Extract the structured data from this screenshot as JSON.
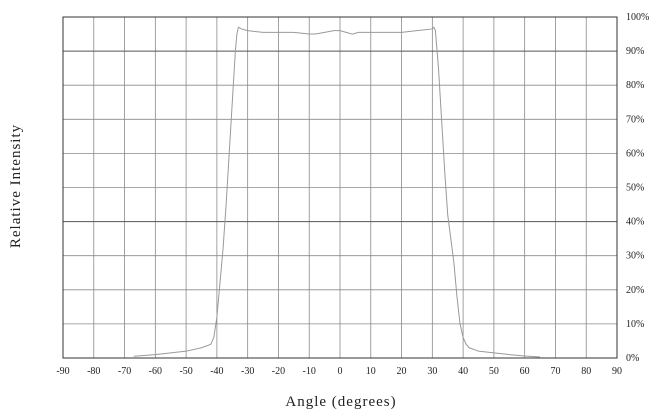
{
  "chart_data": {
    "type": "line",
    "title": "",
    "xlabel": "Angle (degrees)",
    "ylabel": "Relative Intensity",
    "xlim": [
      -90,
      90
    ],
    "ylim": [
      0,
      100
    ],
    "x_ticks": [
      -90,
      -80,
      -70,
      -60,
      -50,
      -40,
      -30,
      -20,
      -10,
      0,
      10,
      20,
      30,
      40,
      50,
      60,
      70,
      80,
      90
    ],
    "x_tick_labels": [
      "-90",
      "-80",
      "-70",
      "-60",
      "-50",
      "-40",
      "-30",
      "-20",
      "-10",
      "0",
      "10",
      "20",
      "30",
      "40",
      "50",
      "60",
      "70",
      "80",
      "90"
    ],
    "y_ticks": [
      0,
      10,
      20,
      30,
      40,
      50,
      60,
      70,
      80,
      90,
      100
    ],
    "y_tick_labels": [
      "0%",
      "10%",
      "20%",
      "30%",
      "40%",
      "50%",
      "60%",
      "70%",
      "80%",
      "90%",
      "100%"
    ],
    "y_axis_position": "right",
    "grid": true,
    "line_color": "#999999",
    "series": [
      {
        "x": [
          -67,
          -60,
          -55,
          -50,
          -45,
          -42,
          -41,
          -40,
          -39,
          -38,
          -37,
          -36,
          -35,
          -34,
          -33.5,
          -33,
          -32,
          -30,
          -25,
          -20,
          -15,
          -10,
          -8,
          -5,
          -2,
          0,
          2,
          4,
          6,
          8,
          10,
          15,
          20,
          25,
          30,
          30.5,
          31,
          32,
          33,
          34,
          35,
          36,
          37,
          38,
          39,
          40,
          41,
          42,
          45,
          50,
          55,
          60,
          65
        ],
        "y": [
          0.5,
          1,
          1.5,
          2,
          3,
          4,
          6,
          12,
          22,
          32,
          45,
          60,
          75,
          90,
          95,
          97,
          96.5,
          96,
          95.5,
          95.5,
          95.5,
          95,
          95,
          95.5,
          96,
          96,
          95.5,
          95,
          95.5,
          95.5,
          95.5,
          95.5,
          95.5,
          96,
          96.5,
          97,
          96,
          85,
          70,
          55,
          42,
          35,
          28,
          18,
          10,
          6,
          4,
          3,
          2,
          1.5,
          1,
          0.6,
          0.3
        ]
      }
    ]
  }
}
